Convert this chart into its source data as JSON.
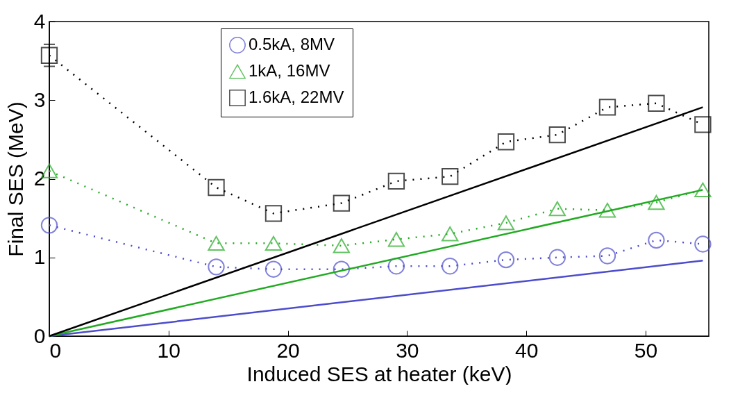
{
  "chart_data": {
    "type": "line",
    "xlabel": "Induced SES at heater (keV)",
    "ylabel": "Final SES (MeV)",
    "xlim": [
      0,
      55.3
    ],
    "ylim": [
      0,
      4
    ],
    "xticks": [
      0,
      10,
      20,
      30,
      40,
      50
    ],
    "yticks": [
      0,
      1,
      2,
      3,
      4
    ],
    "grid": false,
    "legend": "top",
    "line_style": "dotted",
    "series": [
      {
        "name": "0.5kA, 8MV",
        "color": "#4c4ccc",
        "marker": "circle",
        "x": [
          0,
          14,
          18.8,
          24.5,
          29.1,
          33.6,
          38.3,
          42.6,
          46.8,
          50.9,
          54.8
        ],
        "values": [
          1.41,
          0.88,
          0.85,
          0.85,
          0.89,
          0.89,
          0.97,
          1.0,
          1.02,
          1.22,
          1.17
        ]
      },
      {
        "name": "1kA, 16MV",
        "color": "#22aa22",
        "marker": "triangle",
        "x": [
          0,
          14,
          18.8,
          24.5,
          29.1,
          33.6,
          38.3,
          42.6,
          46.8,
          50.9,
          54.8
        ],
        "values": [
          2.1,
          1.18,
          1.18,
          1.15,
          1.23,
          1.3,
          1.44,
          1.62,
          1.6,
          1.7,
          1.86
        ]
      },
      {
        "name": "1.6kA, 22MV",
        "color": "#000000",
        "marker": "square",
        "x": [
          0,
          14,
          18.8,
          24.5,
          29.1,
          33.6,
          38.3,
          42.6,
          46.8,
          50.9,
          54.8
        ],
        "values": [
          3.57,
          1.89,
          1.56,
          1.69,
          1.97,
          2.03,
          2.47,
          2.56,
          2.91,
          2.96,
          2.69
        ],
        "errors": [
          [
            3.43,
            3.71
          ],
          null,
          null,
          null,
          null,
          null,
          null,
          null,
          null,
          null,
          null
        ]
      },
      {
        "type": "line",
        "color": "#4c4ccc",
        "line_style": "solid",
        "marker": "none",
        "x": [
          0,
          54.8
        ],
        "values": [
          0,
          0.96
        ]
      },
      {
        "type": "line",
        "color": "#22aa22",
        "line_style": "solid",
        "marker": "none",
        "x": [
          0,
          54.8
        ],
        "values": [
          0,
          1.86
        ]
      },
      {
        "type": "line",
        "color": "#000000",
        "line_style": "solid",
        "marker": "none",
        "x": [
          0,
          54.8
        ],
        "values": [
          0,
          2.91
        ]
      }
    ]
  }
}
